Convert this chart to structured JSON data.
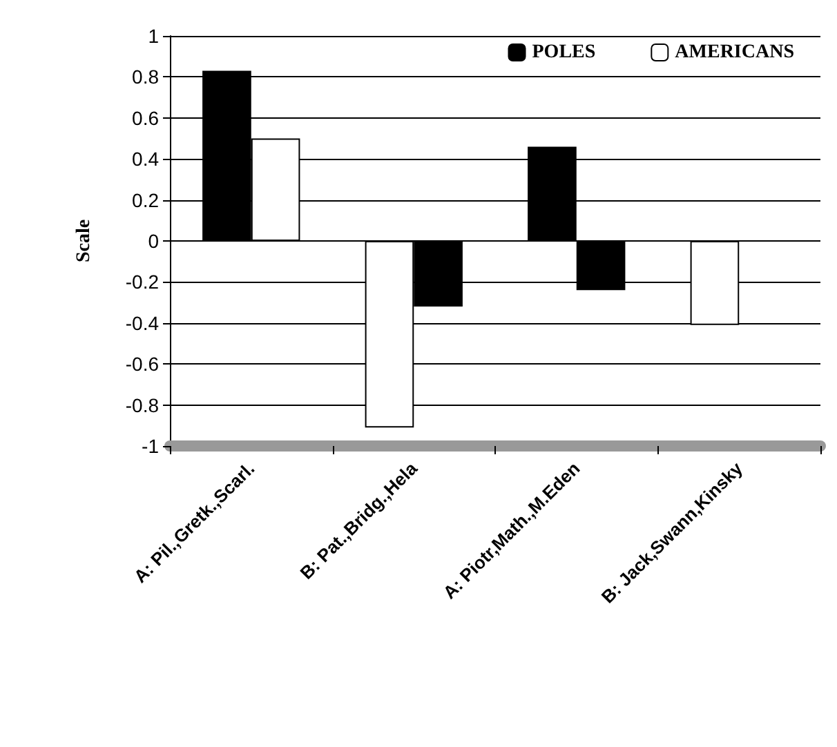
{
  "chart_data": {
    "type": "bar",
    "ylabel": "Scale",
    "categories": [
      "A: Pil.,Gretk.,Scarl.",
      "B: Pat.,Bridg.,Hela",
      "A: Piotr,Math.,M.Eden",
      "B: Jack,Swann,Kinsky"
    ],
    "series": [
      {
        "name": "POLES",
        "color": "#000000",
        "colors": [
          "#000000",
          "#ffffff",
          "#000000",
          "#ffffff"
        ],
        "values": [
          0.83,
          -0.91,
          0.46,
          -0.41
        ]
      },
      {
        "name": "AMERICANS",
        "color": "#ffffff",
        "colors": [
          "#ffffff",
          "#000000",
          "#000000",
          "#000000"
        ],
        "values": [
          0.5,
          -0.32,
          -0.24,
          0
        ]
      }
    ],
    "ylim": [
      -1,
      1
    ],
    "yticks": [
      -1,
      -0.8,
      -0.6,
      -0.4,
      -0.2,
      0,
      0.2,
      0.4,
      0.6,
      0.8,
      1
    ],
    "grid": "y",
    "legend": "top right"
  }
}
